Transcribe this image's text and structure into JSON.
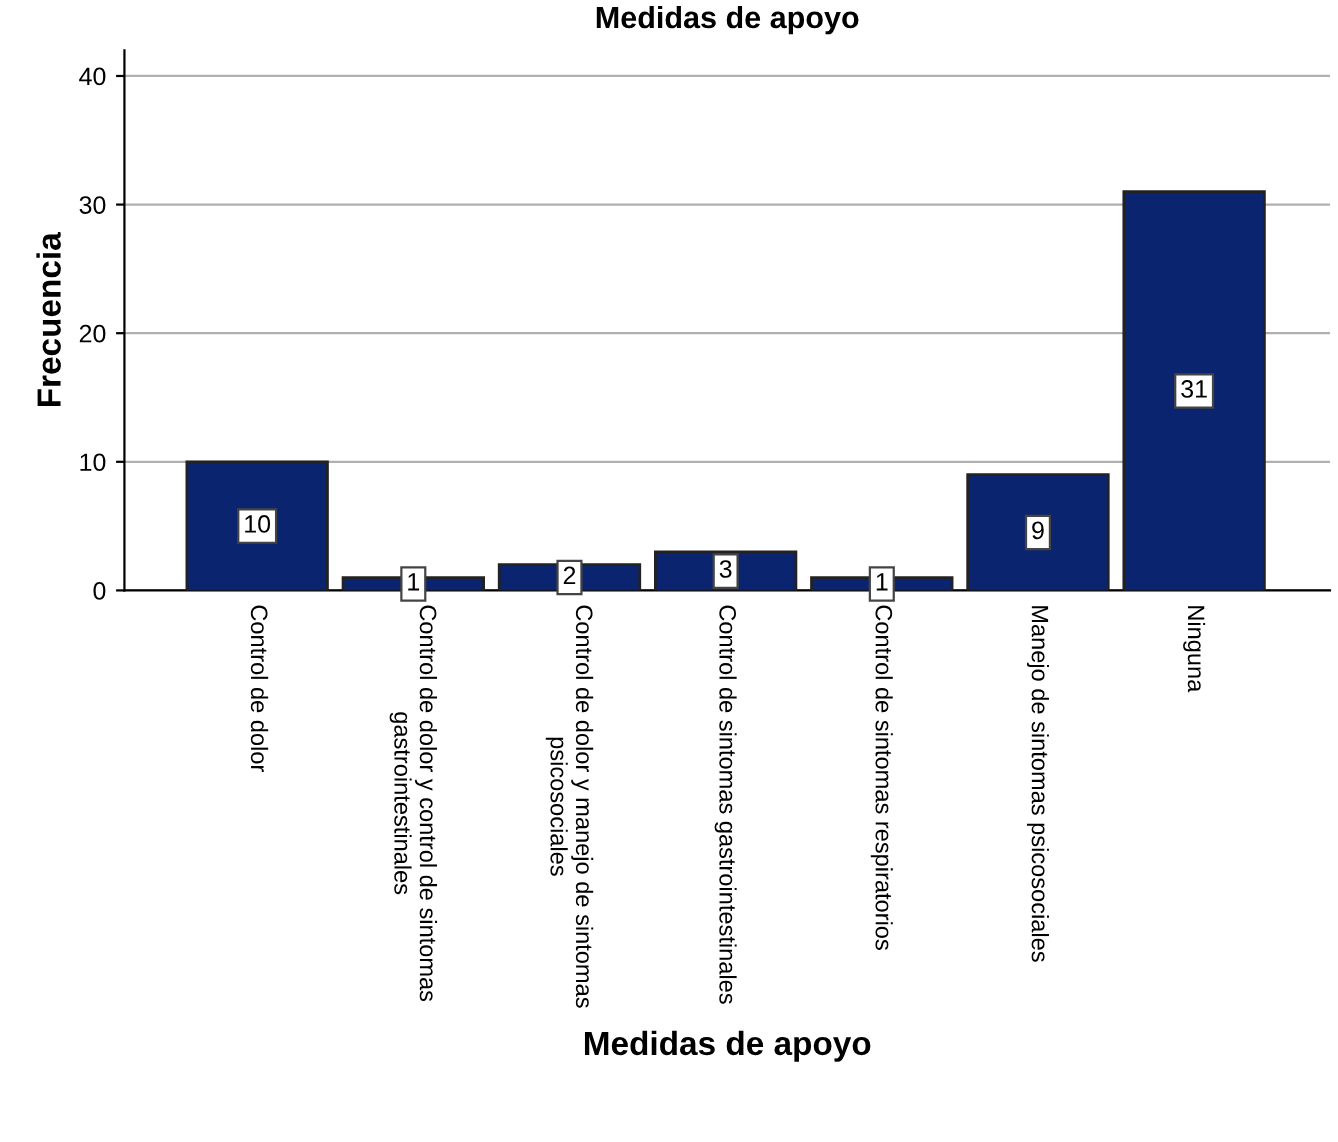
{
  "chart_data": {
    "type": "bar",
    "title": "Medidas de apoyo",
    "xlabel": "Medidas de apoyo",
    "ylabel": "Frecuencia",
    "categories": [
      "Control de dolor",
      "Control de dolor y control de sintomas\ngastrointestinales",
      "Control de dolor y manejo de sintomas\npsicosociales",
      "Control de sintomas gastrointestinales",
      "Control de sintomas respiratorios",
      "Manejo de sintomas psicosociales",
      "Ninguna"
    ],
    "values": [
      10,
      1,
      2,
      3,
      1,
      9,
      31
    ],
    "color": "#0b2470",
    "ylim": [
      0,
      42
    ],
    "yticks": [
      0,
      10,
      20,
      30,
      40
    ],
    "grid": "y",
    "data_labels": true
  }
}
